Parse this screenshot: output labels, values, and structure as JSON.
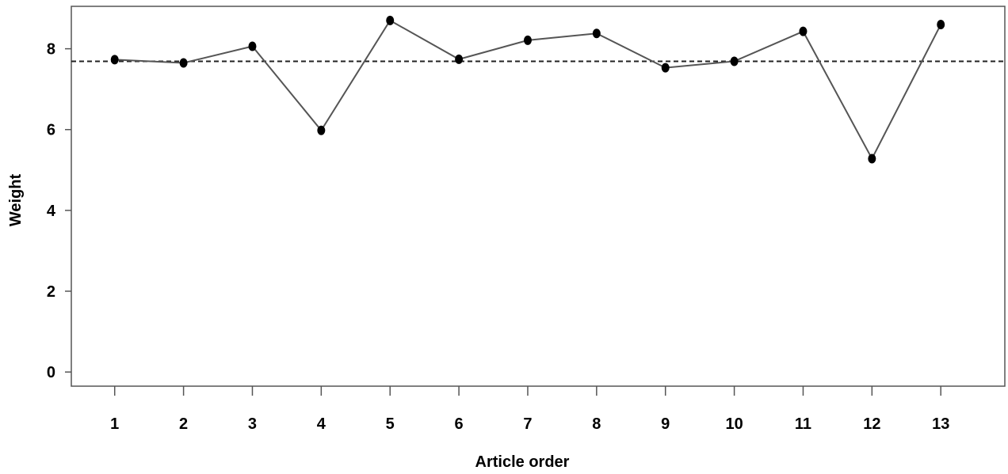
{
  "chart_data": {
    "type": "line",
    "xlabel": "Article order",
    "ylabel": "Weight",
    "x": [
      1,
      2,
      3,
      4,
      5,
      6,
      7,
      8,
      9,
      10,
      11,
      12,
      13
    ],
    "series": [
      {
        "values": [
          7.73,
          7.65,
          8.06,
          5.98,
          8.7,
          7.74,
          8.21,
          8.38,
          7.53,
          7.69,
          8.43,
          5.28,
          8.6
        ]
      }
    ],
    "reference_line": {
      "y": 7.69,
      "style": "dashed"
    },
    "yticks": [
      0,
      2,
      4,
      6,
      8
    ],
    "xticks": [
      1,
      2,
      3,
      4,
      5,
      6,
      7,
      8,
      9,
      10,
      11,
      12,
      13
    ],
    "ylim": [
      -0.35,
      9.05
    ],
    "xlim": [
      0.37,
      13.93
    ],
    "grid": false,
    "colors": {
      "line": "#555555",
      "marker": "#000000",
      "reference": "#222222",
      "frame": "#555555"
    }
  }
}
